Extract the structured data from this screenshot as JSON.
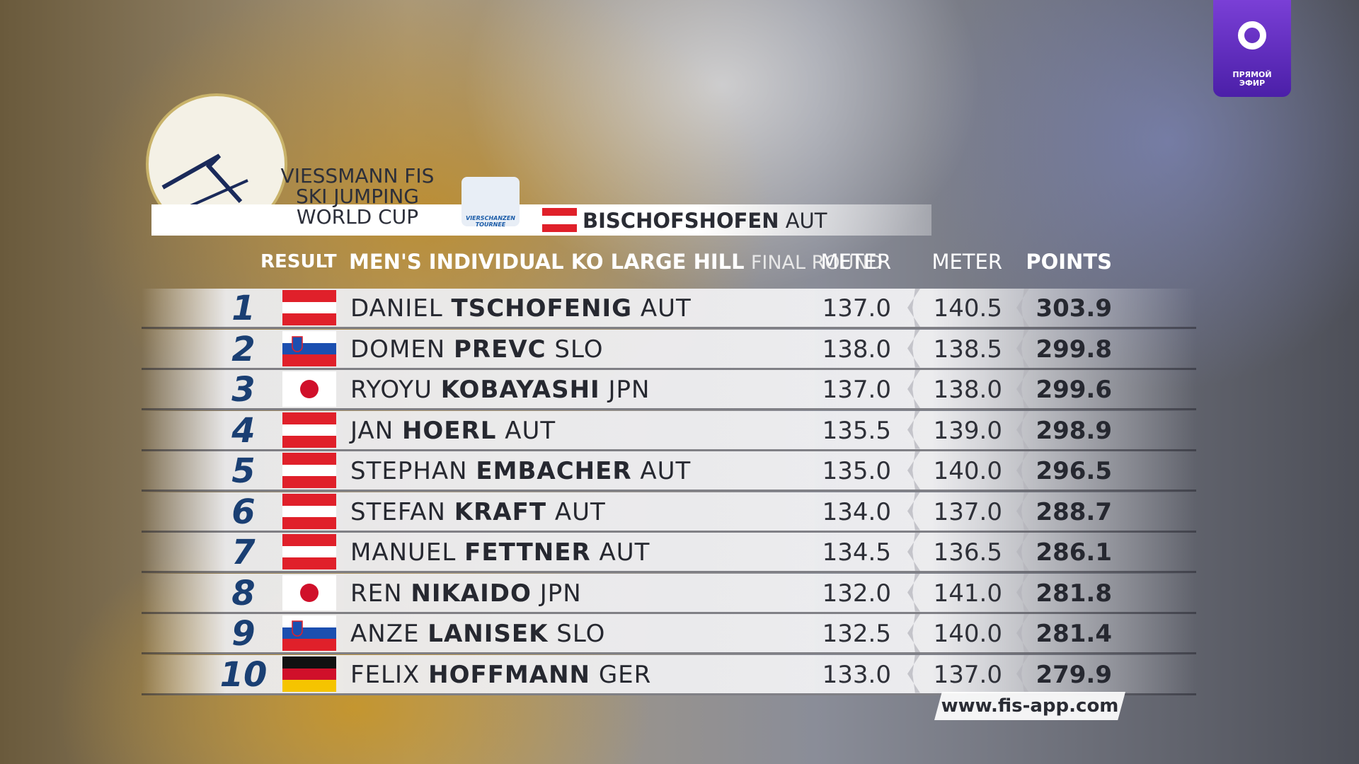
{
  "logo": {
    "line1": "VIESSMANN FIS",
    "line2": "SKI JUMPING",
    "line3": "WORLD CUP"
  },
  "tournee_logo": {
    "line1": "VIERSCHANZEN",
    "line2": "TOURNEE"
  },
  "venue": {
    "name": "BISCHOFSHOFEN",
    "nation": "AUT"
  },
  "header": {
    "label": "RESULT",
    "event": "MEN'S INDIVIDUAL KO LARGE HILL",
    "round": "FINAL ROUND",
    "columns": [
      "METER",
      "METER",
      "POINTS"
    ]
  },
  "rows": [
    {
      "rank": 1,
      "first": "DANIEL",
      "last": "TSCHOFENIG",
      "nation": "AUT",
      "meter1": "137.0",
      "meter2": "140.5",
      "points": "303.9"
    },
    {
      "rank": 2,
      "first": "DOMEN",
      "last": "PREVC",
      "nation": "SLO",
      "meter1": "138.0",
      "meter2": "138.5",
      "points": "299.8"
    },
    {
      "rank": 3,
      "first": "RYOYU",
      "last": "KOBAYASHI",
      "nation": "JPN",
      "meter1": "137.0",
      "meter2": "138.0",
      "points": "299.6"
    },
    {
      "rank": 4,
      "first": "JAN",
      "last": "HOERL",
      "nation": "AUT",
      "meter1": "135.5",
      "meter2": "139.0",
      "points": "298.9"
    },
    {
      "rank": 5,
      "first": "STEPHAN",
      "last": "EMBACHER",
      "nation": "AUT",
      "meter1": "135.0",
      "meter2": "140.0",
      "points": "296.5"
    },
    {
      "rank": 6,
      "first": "STEFAN",
      "last": "KRAFT",
      "nation": "AUT",
      "meter1": "134.0",
      "meter2": "137.0",
      "points": "288.7"
    },
    {
      "rank": 7,
      "first": "MANUEL",
      "last": "FETTNER",
      "nation": "AUT",
      "meter1": "134.5",
      "meter2": "136.5",
      "points": "286.1"
    },
    {
      "rank": 8,
      "first": "REN",
      "last": "NIKAIDO",
      "nation": "JPN",
      "meter1": "132.0",
      "meter2": "141.0",
      "points": "281.8"
    },
    {
      "rank": 9,
      "first": "ANZE",
      "last": "LANISEK",
      "nation": "SLO",
      "meter1": "132.5",
      "meter2": "140.0",
      "points": "281.4"
    },
    {
      "rank": 10,
      "first": "FELIX",
      "last": "HOFFMANN",
      "nation": "GER",
      "meter1": "133.0",
      "meter2": "137.0",
      "points": "279.9"
    }
  ],
  "footer": "www.fis-app.com",
  "channel": {
    "line1": "ПРЯМОЙ",
    "line2": "ЭФИР"
  }
}
